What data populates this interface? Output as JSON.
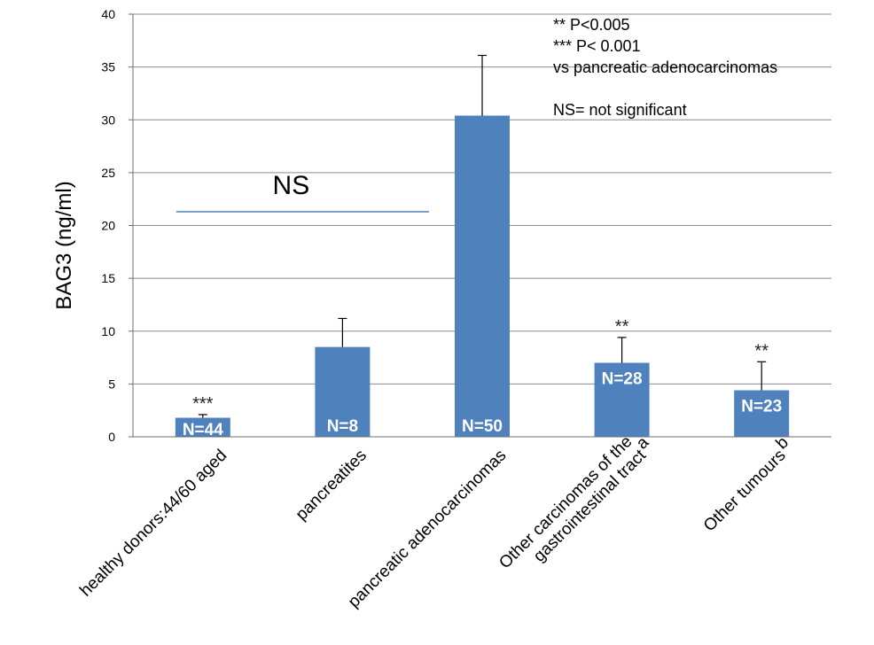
{
  "chart_data": {
    "type": "bar",
    "ylabel": "BAG3 (ng/ml)",
    "xlabel": "",
    "ylim": [
      0,
      40
    ],
    "yticks": [
      0,
      5,
      10,
      15,
      20,
      25,
      30,
      35,
      40
    ],
    "grid": true,
    "bar_color": "#4f81bd",
    "categories": [
      {
        "lines": [
          "healthy donors:44/60 aged"
        ]
      },
      {
        "lines": [
          "pancreatites"
        ]
      },
      {
        "lines": [
          "pancreatic adenocarcinomas"
        ]
      },
      {
        "lines": [
          "Other carcinomas of the",
          "gastrointestinal tract"
        ],
        "sup": "a"
      },
      {
        "lines": [
          "Other  tumours"
        ],
        "sup": "b"
      }
    ],
    "values": [
      1.8,
      8.5,
      30.4,
      7.0,
      4.4
    ],
    "error_upper": [
      2.1,
      11.2,
      36.1,
      9.4,
      7.1
    ],
    "n_labels": [
      "N=44",
      "N=8",
      "N=50",
      "N=28",
      "N=23"
    ],
    "significance": [
      "***",
      "",
      "",
      "**",
      "**"
    ],
    "bracket": {
      "label": "NS",
      "value": 21.3,
      "from_category": 0,
      "to_category": 2
    },
    "legend_lines": [
      "** P<0.005",
      "*** P< 0.001",
      " vs pancreatic adenocarcinomas",
      "",
      "NS= not significant"
    ]
  }
}
